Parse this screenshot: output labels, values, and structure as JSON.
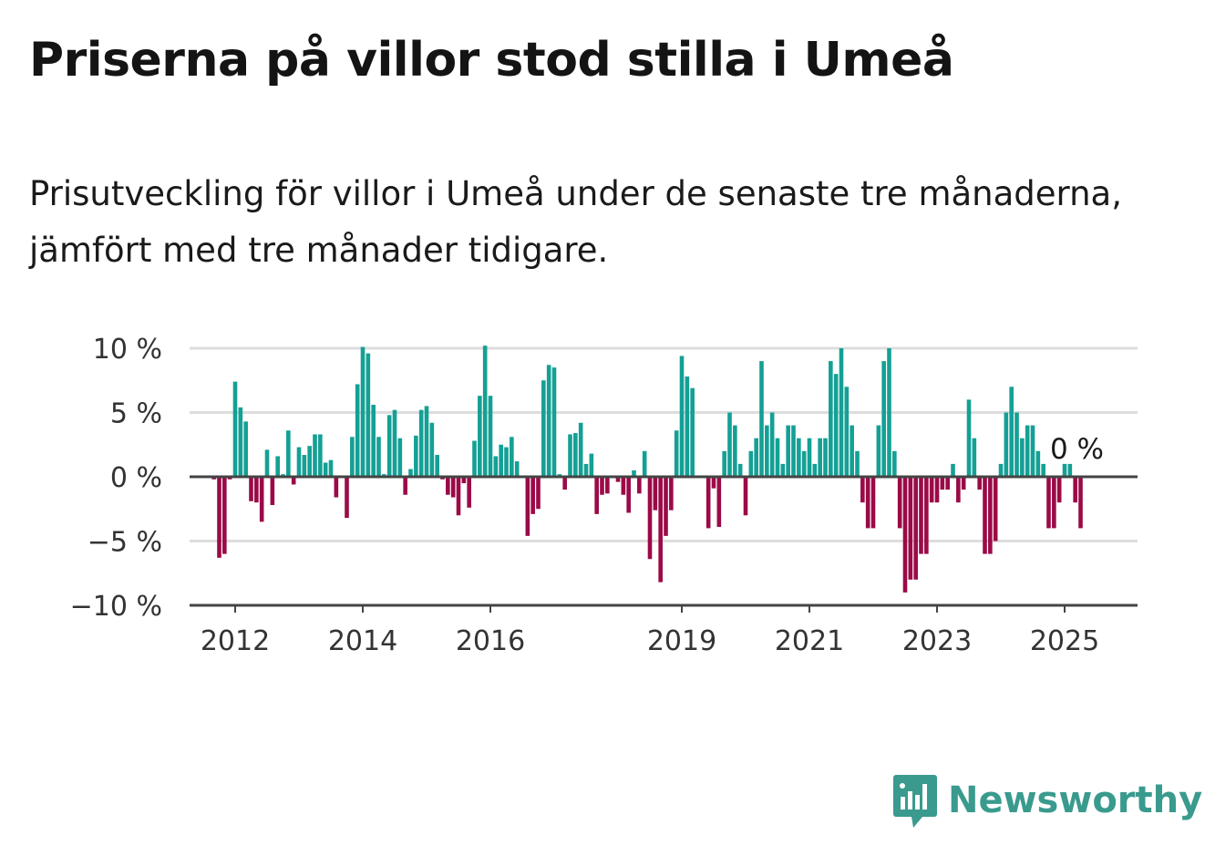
{
  "title": "Priserna på villor stod stilla i Umeå",
  "subtitle": "Prisutveckling för villor i Umeå under de senaste tre månaderna, jämfört med tre månader tidigare.",
  "brand": "Newsworthy",
  "colors": {
    "positive": "#14a095",
    "negative": "#9b0a47",
    "brand": "#3a9a8e",
    "grid": "#dddddd",
    "axis": "#444444"
  },
  "chart_data": {
    "type": "bar",
    "title": "",
    "xlabel": "",
    "ylabel": "",
    "ylim": [
      -10,
      10
    ],
    "y_ticks": [
      10,
      5,
      0,
      -5,
      -10
    ],
    "y_tick_labels": [
      "10 %",
      "5 %",
      "0 %",
      "−5 %",
      "−10 %"
    ],
    "x_tick_labels": [
      "2012",
      "2014",
      "2016",
      "2019",
      "2021",
      "2023",
      "2025"
    ],
    "x_tick_positions": [
      2012.0,
      2014.0,
      2016.0,
      2019.0,
      2021.0,
      2023.0,
      2025.0
    ],
    "x_start": 2011.6667,
    "x_step": 0.0833333,
    "annotation": "0 %",
    "values": [
      -0.2,
      -6.3,
      -6.0,
      -0.2,
      7.4,
      5.4,
      4.3,
      -1.9,
      -2.0,
      -3.5,
      2.1,
      -2.2,
      1.6,
      0.2,
      3.6,
      -0.6,
      2.3,
      1.7,
      2.4,
      3.3,
      3.3,
      1.1,
      1.3,
      -1.6,
      0.0,
      -3.2,
      3.1,
      7.2,
      10.1,
      9.6,
      5.6,
      3.1,
      0.2,
      4.8,
      5.2,
      3.0,
      -1.4,
      0.6,
      3.2,
      5.2,
      5.5,
      4.2,
      1.7,
      -0.2,
      -1.4,
      -1.6,
      -3.0,
      -0.5,
      -2.4,
      2.8,
      6.3,
      10.2,
      6.3,
      1.6,
      2.5,
      2.3,
      3.1,
      1.2,
      0.0,
      -4.6,
      -2.9,
      -2.5,
      7.5,
      8.7,
      8.5,
      0.2,
      -1.0,
      3.3,
      3.4,
      4.2,
      1.0,
      1.8,
      -2.9,
      -1.4,
      -1.3,
      0.0,
      -0.4,
      -1.4,
      -2.8,
      0.5,
      -1.3,
      2.0,
      -6.4,
      -2.6,
      -8.2,
      -4.6,
      -2.6,
      3.6,
      9.4,
      7.8,
      6.9,
      0.0,
      0.0,
      -4.0,
      -0.9,
      -3.9,
      2.0,
      5.0,
      4.0,
      1.0,
      -3.0,
      2.0,
      3.0,
      9.0,
      4.0,
      5.0,
      3.0,
      1.0,
      4.0,
      4.0,
      3.0,
      2.0,
      3.0,
      1.0,
      3.0,
      3.0,
      9.0,
      8.0,
      10.0,
      7.0,
      4.0,
      2.0,
      -2.0,
      -4.0,
      -4.0,
      4.0,
      9.0,
      10.0,
      2.0,
      -4.0,
      -9.0,
      -8.0,
      -8.0,
      -6.0,
      -6.0,
      -2.0,
      -2.0,
      -1.0,
      -1.0,
      1.0,
      -2.0,
      -1.0,
      6.0,
      3.0,
      -1.0,
      -6.0,
      -6.0,
      -5.0,
      1.0,
      5.0,
      7.0,
      5.0,
      3.0,
      4.0,
      4.0,
      2.0,
      1.0,
      -4.0,
      -4.0,
      -2.0,
      1.0,
      1.0,
      -2.0,
      -4.0
    ]
  }
}
